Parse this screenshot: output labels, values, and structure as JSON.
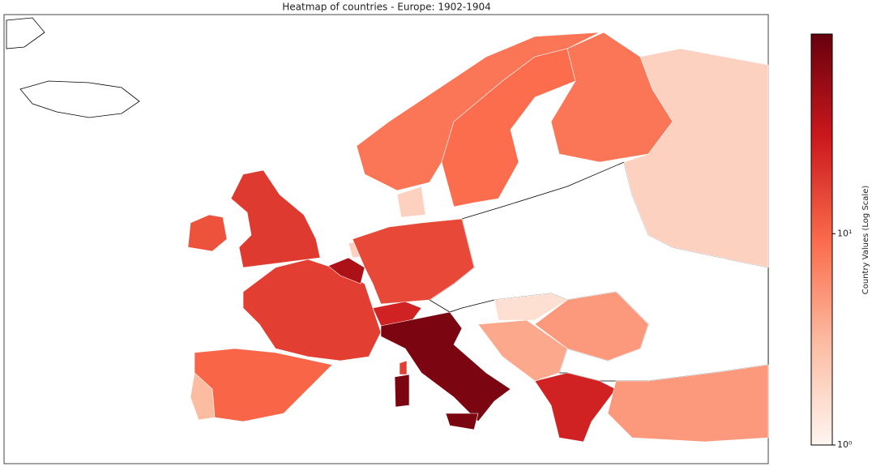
{
  "chart_data": {
    "type": "choropleth",
    "title": "Heatmap of countries - Europe: 1902-1904",
    "colorbar_label": "Country Values (Log Scale)",
    "colormap": "Reds",
    "log_scale": true,
    "clim": [
      1,
      88
    ],
    "cticks": [
      {
        "value": 1,
        "label": "10⁰"
      },
      {
        "value": 10,
        "label": "10¹"
      }
    ],
    "values": [
      18,
      13,
      17,
      10,
      3,
      40,
      2,
      15,
      25,
      70,
      70,
      70,
      17,
      2,
      8,
      9,
      8,
      2,
      25,
      5,
      4,
      5,
      1.5
    ]
  }
}
